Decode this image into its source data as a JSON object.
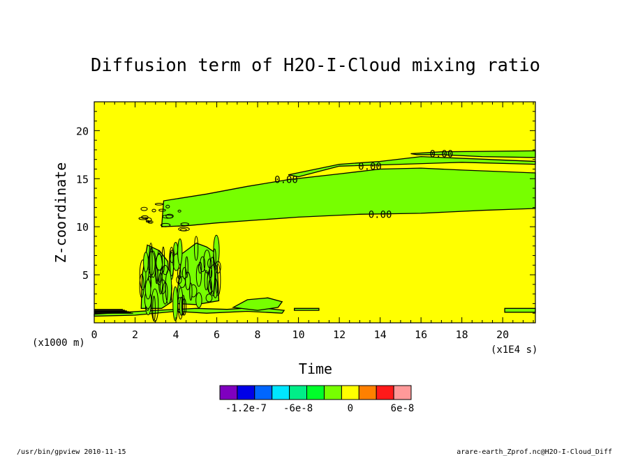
{
  "chart_data": {
    "type": "contour",
    "title": "Diffusion term of H2O-I-Cloud mixing ratio",
    "xlabel": "Time",
    "ylabel": "Z-coordinate",
    "x_unit": "(x1E4 s)",
    "y_unit": "(x1000 m)",
    "xlim": [
      0,
      21.6
    ],
    "ylim": [
      0,
      23
    ],
    "x_ticks": [
      0,
      2,
      4,
      6,
      8,
      10,
      12,
      14,
      16,
      18,
      20
    ],
    "y_ticks": [
      5,
      10,
      15,
      20
    ],
    "contour_labels": [
      {
        "text": "0.00",
        "x": 9.4,
        "y": 14.9
      },
      {
        "text": "0.00",
        "x": 13.5,
        "y": 16.3
      },
      {
        "text": "0.00",
        "x": 17.0,
        "y": 17.6
      },
      {
        "text": "0.00",
        "x": 14.0,
        "y": 11.3
      }
    ],
    "background_color": "#ffff00",
    "region_color": "#77ff00",
    "regions": [
      {
        "name": "upper-green-band",
        "points": [
          [
            3.3,
            10.0
          ],
          [
            3.4,
            12.7
          ],
          [
            5.5,
            13.4
          ],
          [
            7.5,
            14.2
          ],
          [
            9.5,
            14.9
          ],
          [
            12,
            15.5
          ],
          [
            14,
            16.0
          ],
          [
            16,
            16.1
          ],
          [
            18,
            15.9
          ],
          [
            21.6,
            15.6
          ],
          [
            21.6,
            11.9
          ],
          [
            19,
            11.7
          ],
          [
            16,
            11.4
          ],
          [
            13,
            11.3
          ],
          [
            10,
            11.0
          ],
          [
            8,
            10.7
          ],
          [
            6,
            10.4
          ],
          [
            4.5,
            10.1
          ]
        ]
      },
      {
        "name": "top-thin-band",
        "points": [
          [
            9.5,
            15.4
          ],
          [
            12,
            16.5
          ],
          [
            14,
            16.8
          ],
          [
            16,
            17.3
          ],
          [
            21.6,
            16.8
          ],
          [
            21.6,
            16.5
          ],
          [
            18,
            16.7
          ],
          [
            15,
            16.5
          ],
          [
            12,
            16.3
          ],
          [
            10,
            15.2
          ]
        ]
      },
      {
        "name": "top-strip",
        "points": [
          [
            15.5,
            17.6
          ],
          [
            17,
            17.8
          ],
          [
            21.6,
            17.9
          ],
          [
            21.6,
            17.2
          ],
          [
            19,
            17.3
          ],
          [
            17,
            17.5
          ],
          [
            15.8,
            17.5
          ]
        ]
      },
      {
        "name": "tower-left",
        "points": [
          [
            2.3,
            1.5
          ],
          [
            2.35,
            5.0
          ],
          [
            2.6,
            8.1
          ],
          [
            3.2,
            7.5
          ],
          [
            3.6,
            6.4
          ],
          [
            3.8,
            2.2
          ],
          [
            3.3,
            1.5
          ]
        ]
      },
      {
        "name": "tower-right",
        "points": [
          [
            4.0,
            2.0
          ],
          [
            4.3,
            7.2
          ],
          [
            5.0,
            8.3
          ],
          [
            5.5,
            7.9
          ],
          [
            6.0,
            7.2
          ],
          [
            6.1,
            2.3
          ],
          [
            5.0,
            1.9
          ]
        ]
      },
      {
        "name": "ground-layer",
        "points": [
          [
            0,
            0.9
          ],
          [
            1.5,
            1.1
          ],
          [
            3.0,
            1.3
          ],
          [
            5.0,
            1.5
          ],
          [
            6.5,
            1.4
          ],
          [
            8.0,
            1.6
          ],
          [
            9.3,
            1.3
          ],
          [
            9.2,
            1.0
          ],
          [
            7.5,
            1.2
          ],
          [
            5.5,
            1.0
          ],
          [
            4.0,
            1.2
          ],
          [
            2.0,
            0.8
          ],
          [
            0,
            0.7
          ]
        ]
      },
      {
        "name": "low-blob",
        "points": [
          [
            6.8,
            1.6
          ],
          [
            7.5,
            2.4
          ],
          [
            8.5,
            2.6
          ],
          [
            9.2,
            2.2
          ],
          [
            9.0,
            1.6
          ],
          [
            8.0,
            1.3
          ]
        ]
      },
      {
        "name": "low-strip-mid",
        "points": [
          [
            9.8,
            1.5
          ],
          [
            11.0,
            1.5
          ],
          [
            11.0,
            1.3
          ],
          [
            9.8,
            1.3
          ]
        ]
      },
      {
        "name": "low-strip-right",
        "points": [
          [
            20.1,
            1.5
          ],
          [
            21.6,
            1.5
          ],
          [
            21.6,
            1.1
          ],
          [
            20.1,
            1.1
          ]
        ]
      }
    ],
    "colorbar": {
      "colors": [
        "#7f00bf",
        "#0000e8",
        "#0066ff",
        "#00e6ff",
        "#00ee88",
        "#00ff2a",
        "#77ff00",
        "#ffff00",
        "#ff8000",
        "#ff1a1a",
        "#ff9999"
      ],
      "tick_labels": [
        "-1.2e-7",
        "-6e-8",
        "0",
        "6e-8"
      ]
    }
  },
  "footer": {
    "left": "/usr/bin/gpview  2010-11-15",
    "right": "arare-earth_Zprof.nc@H2O-I-Cloud_Diff"
  }
}
